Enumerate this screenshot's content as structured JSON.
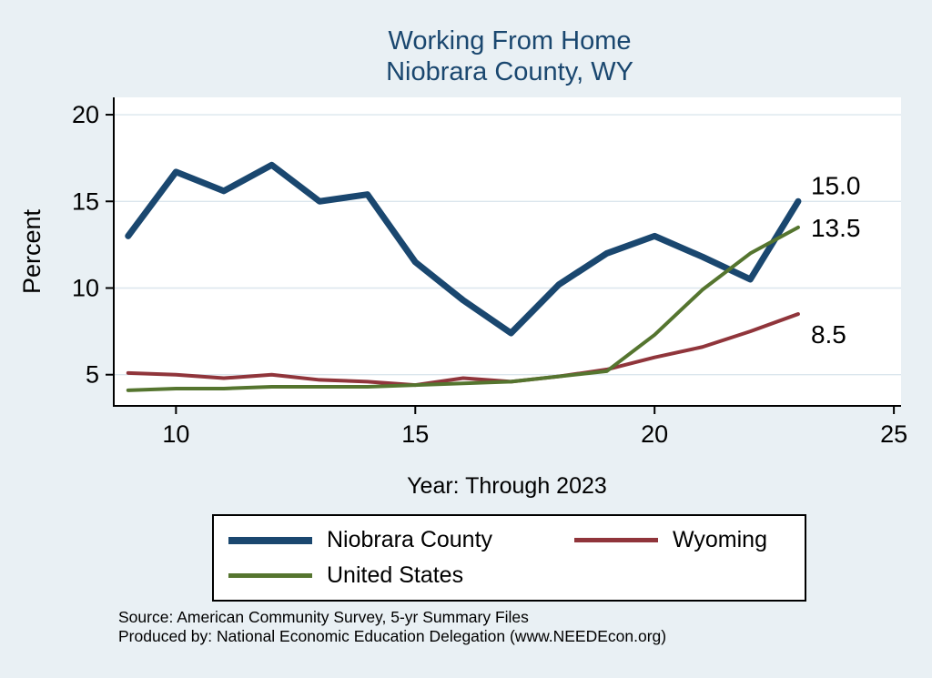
{
  "title": {
    "line1": "Working From Home",
    "line2": "Niobrara County, WY"
  },
  "chart_data": {
    "type": "line",
    "title": "Working From Home — Niobrara County, WY",
    "xlabel": "Year: Through 2023",
    "ylabel": "Percent",
    "xlim": [
      8.7,
      25.15
    ],
    "ylim": [
      3.2,
      21.0
    ],
    "x_ticks": [
      10,
      15,
      20,
      25
    ],
    "y_ticks": [
      5,
      10,
      15,
      20
    ],
    "grid": "horizontal",
    "legend_position": "bottom",
    "x": [
      9,
      10,
      11,
      12,
      13,
      14,
      15,
      16,
      17,
      18,
      19,
      20,
      21,
      22,
      23
    ],
    "series": [
      {
        "name": "Niobrara County",
        "color": "#1a476f",
        "width": 7,
        "end_label": "15.0",
        "label_dy": -8,
        "values": [
          13.0,
          16.7,
          15.6,
          17.1,
          15.0,
          15.4,
          11.5,
          9.3,
          7.4,
          10.2,
          12.0,
          13.0,
          11.8,
          10.5,
          15.0
        ]
      },
      {
        "name": "Wyoming",
        "color": "#90353b",
        "width": 4,
        "end_label": "8.5",
        "label_dy": 32,
        "values": [
          5.1,
          5.0,
          4.8,
          5.0,
          4.7,
          4.6,
          4.4,
          4.8,
          4.6,
          4.9,
          5.3,
          6.0,
          6.6,
          7.5,
          8.5
        ]
      },
      {
        "name": "United States",
        "color": "#55752f",
        "width": 4,
        "end_label": "13.5",
        "label_dy": 10,
        "values": [
          4.1,
          4.2,
          4.2,
          4.3,
          4.3,
          4.3,
          4.4,
          4.5,
          4.6,
          4.9,
          5.2,
          7.3,
          9.9,
          12.0,
          13.5
        ]
      }
    ]
  },
  "notes": {
    "line1": "Source: American Community Survey, 5-yr Summary Files",
    "line2": "Produced by: National Economic Education Delegation (www.NEEDEcon.org)"
  }
}
